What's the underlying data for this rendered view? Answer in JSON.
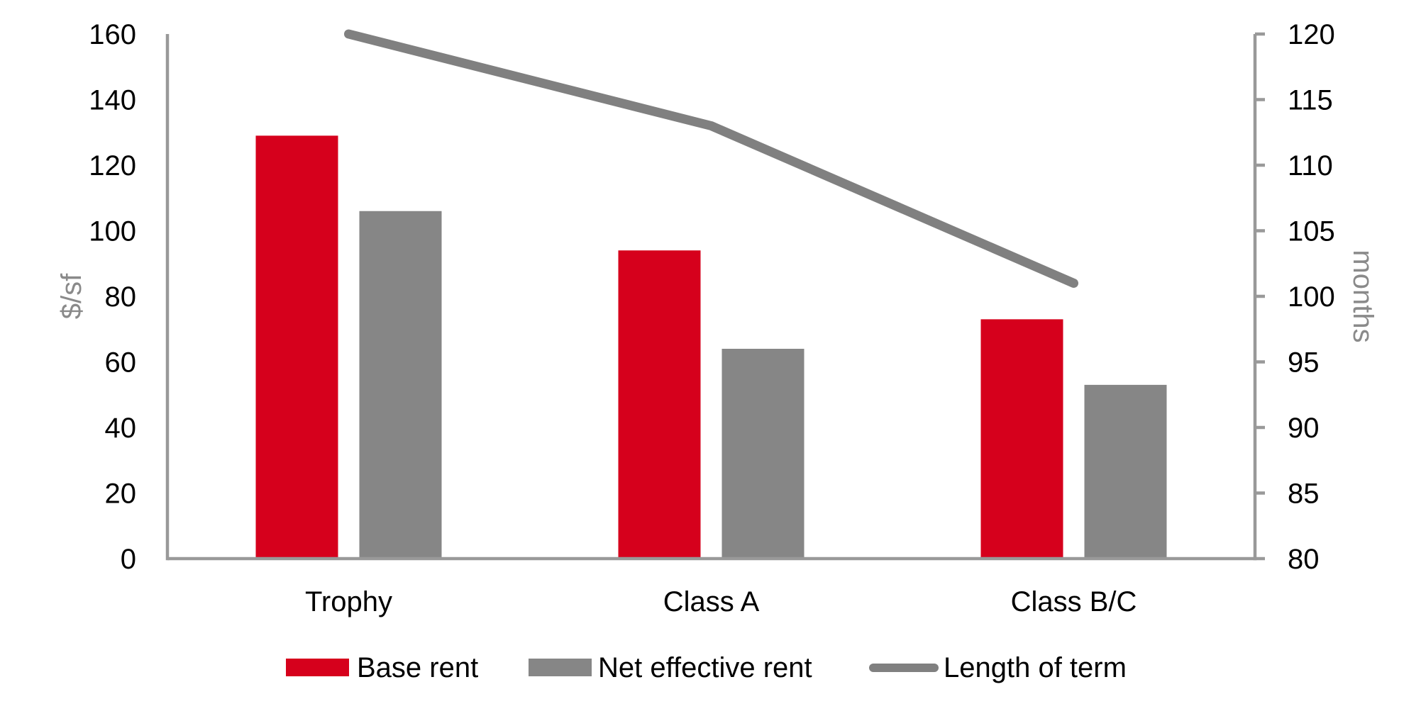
{
  "chart_data": {
    "type": "bar+line",
    "categories": [
      "Trophy",
      "Class A",
      "Class B/C"
    ],
    "series": [
      {
        "name": "Base rent",
        "type": "bar",
        "axis": "left",
        "color": "#d6001c",
        "values": [
          129,
          94,
          73
        ]
      },
      {
        "name": "Net effective rent",
        "type": "bar",
        "axis": "left",
        "color": "#868686",
        "values": [
          106,
          64,
          53
        ]
      },
      {
        "name": "Length of term",
        "type": "line",
        "axis": "right",
        "color": "#808080",
        "values": [
          120,
          113,
          101
        ]
      }
    ],
    "left_axis": {
      "label": "$/sf",
      "min": 0,
      "max": 160,
      "step": 20,
      "ticks": [
        "0",
        "20",
        "40",
        "60",
        "80",
        "100",
        "120",
        "140",
        "160"
      ]
    },
    "right_axis": {
      "label": "months",
      "min": 80,
      "max": 120,
      "step": 5,
      "ticks": [
        "80",
        "85",
        "90",
        "95",
        "100",
        "105",
        "110",
        "115",
        "120"
      ]
    },
    "legend": {
      "position": "bottom",
      "entries": [
        "Base rent",
        "Net effective rent",
        "Length of term"
      ]
    },
    "grid": false,
    "background": "#ffffff"
  },
  "colors": {
    "axis_line": "#999999",
    "tick_label": "#000000",
    "category_label": "#000000",
    "axis_title": "#8a8a8a",
    "legend_text": "#000000"
  }
}
